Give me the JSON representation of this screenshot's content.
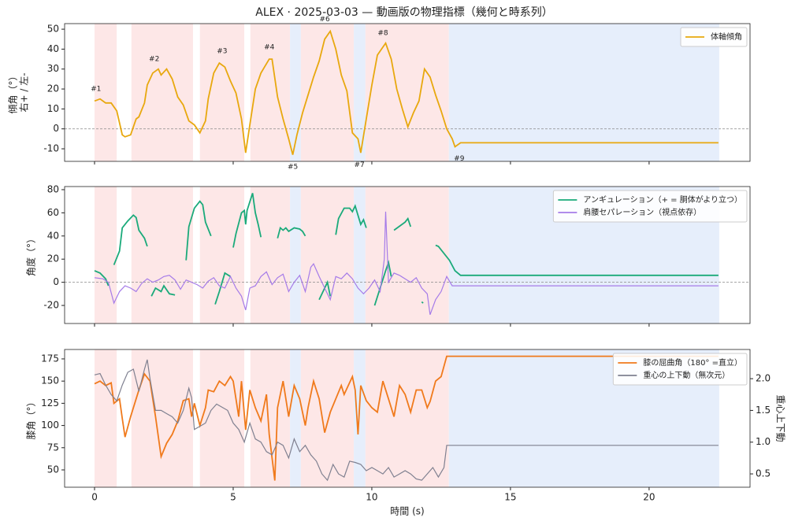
{
  "title": "ALEX · 2025-03-03 — 動画版の物理指標（幾何と時系列）",
  "spans": [
    {
      "start": 0,
      "end": 0.8,
      "color": "#fde7e7"
    },
    {
      "start": 1.33,
      "end": 3.55,
      "color": "#fde7e7"
    },
    {
      "start": 3.8,
      "end": 5.4,
      "color": "#fde7e7"
    },
    {
      "start": 5.62,
      "end": 7.05,
      "color": "#fde7e7"
    },
    {
      "start": 7.05,
      "end": 7.44,
      "color": "#e6eefb"
    },
    {
      "start": 7.44,
      "end": 9.35,
      "color": "#fde7e7"
    },
    {
      "start": 9.35,
      "end": 9.77,
      "color": "#e6eefb"
    },
    {
      "start": 9.77,
      "end": 12.78,
      "color": "#fde7e7"
    },
    {
      "start": 12.78,
      "end": 22.53,
      "color": "#e6eefb"
    }
  ],
  "chart_data": [
    {
      "type": "line",
      "ylabel": [
        "傾角（°）",
        "右+ / 左-"
      ],
      "xlim": [
        -1.08,
        23.64
      ],
      "ylim": [
        -16.3,
        52.8
      ],
      "yticks": [
        -10,
        0,
        10,
        20,
        30,
        40,
        50
      ],
      "hline": 0,
      "legend": "upper right",
      "series": [
        {
          "name": "体軸傾角",
          "color": "#e8a80e",
          "x": [
            0,
            0.2,
            0.4,
            0.6,
            0.8,
            1.0,
            1.1,
            1.3,
            1.5,
            1.6,
            1.8,
            1.9,
            2.1,
            2.3,
            2.4,
            2.6,
            2.8,
            3.0,
            3.2,
            3.4,
            3.6,
            3.8,
            4.0,
            4.1,
            4.3,
            4.5,
            4.7,
            4.9,
            5.1,
            5.3,
            5.45,
            5.6,
            5.8,
            6.0,
            6.3,
            6.4,
            6.6,
            6.8,
            7.0,
            7.15,
            7.3,
            7.5,
            7.7,
            7.9,
            8.1,
            8.3,
            8.5,
            8.7,
            8.9,
            9.1,
            9.3,
            9.5,
            9.6,
            9.8,
            10.0,
            10.2,
            10.5,
            10.7,
            10.9,
            11.1,
            11.3,
            11.5,
            11.7,
            11.9,
            12.1,
            12.3,
            12.5,
            12.7,
            12.9,
            13.0,
            13.2,
            22.5
          ],
          "values": [
            14,
            15,
            13,
            13,
            9,
            -3,
            -4,
            -3,
            5,
            6,
            13,
            22,
            28,
            30,
            27,
            30,
            25,
            16,
            12,
            4,
            2,
            -2,
            4,
            15,
            28,
            33,
            31,
            24,
            18,
            5,
            -12,
            2,
            20,
            28,
            35,
            35,
            16,
            5,
            -5,
            -13,
            -3,
            8,
            17,
            26,
            34,
            45,
            49,
            40,
            27,
            19,
            -2,
            -5,
            -12,
            5,
            22,
            37,
            43,
            35,
            20,
            10,
            1,
            8,
            14,
            30,
            26,
            17,
            9,
            0,
            -5,
            -9,
            -7,
            -7
          ]
        }
      ],
      "annotations": [
        {
          "text": "#1",
          "x": 0.05,
          "y": 20
        },
        {
          "text": "#2",
          "x": 2.15,
          "y": 35
        },
        {
          "text": "#3",
          "x": 4.6,
          "y": 39
        },
        {
          "text": "#4",
          "x": 6.3,
          "y": 41
        },
        {
          "text": "#5",
          "x": 7.15,
          "y": -19
        },
        {
          "text": "#6",
          "x": 8.3,
          "y": 55
        },
        {
          "text": "#7",
          "x": 9.55,
          "y": -18
        },
        {
          "text": "#8",
          "x": 10.4,
          "y": 48
        },
        {
          "text": "#9",
          "x": 13.15,
          "y": -15
        }
      ]
    },
    {
      "type": "line",
      "ylabel": [
        "角度（°）"
      ],
      "xlim": [
        -1.08,
        23.64
      ],
      "ylim": [
        -35.6,
        82.7
      ],
      "yticks": [
        -20,
        0,
        20,
        40,
        60,
        80
      ],
      "hline": 0,
      "legend": "upper right",
      "series": [
        {
          "name": "アンギュレーション（+ = 胴体がより立つ）",
          "color": "#1aaa7a",
          "x": [
            0,
            0.2,
            0.4,
            0.5,
            0.6,
            0.7,
            0.9,
            1.0,
            1.2,
            1.4,
            1.5,
            1.6,
            1.8,
            1.9,
            1.95,
            2.05,
            2.2,
            2.4,
            2.5,
            2.7,
            2.9,
            3.1,
            3.3,
            3.4,
            3.6,
            3.8,
            3.9,
            4.0,
            4.2,
            4.25,
            4.35,
            4.5,
            4.7,
            4.9,
            4.95,
            5.0,
            5.1,
            5.3,
            5.4,
            5.45,
            5.5,
            5.7,
            5.8,
            5.9,
            6.0,
            6.1,
            6.6,
            6.7,
            6.8,
            6.9,
            7.0,
            7.2,
            7.4,
            7.5,
            7.6,
            7.8,
            8.1,
            8.3,
            8.4,
            8.5,
            8.6,
            8.7,
            8.8,
            9.0,
            9.2,
            9.3,
            9.4,
            9.6,
            9.7,
            9.8,
            9.9,
            10.1,
            10.3,
            10.5,
            10.6,
            10.7,
            10.75,
            10.8,
            11.2,
            11.3,
            11.4,
            11.6,
            11.8,
            11.85,
            12.0,
            12.3,
            12.4,
            12.8,
            13.0,
            13.2,
            22.5
          ],
          "values": [
            10,
            8,
            3,
            -3,
            null,
            15,
            27,
            47,
            53,
            58,
            56,
            45,
            38,
            31,
            null,
            -12,
            -5,
            -8,
            -3,
            -10,
            -11,
            null,
            19,
            48,
            64,
            70,
            67,
            52,
            40,
            null,
            -19,
            -8,
            8,
            5,
            null,
            30,
            42,
            60,
            62,
            50,
            62,
            77,
            60,
            50,
            39,
            null,
            38,
            47,
            45,
            47,
            44,
            47,
            46,
            44,
            40,
            null,
            -15,
            -5,
            0,
            -12,
            null,
            41,
            55,
            64,
            64,
            61,
            66,
            50,
            54,
            47,
            null,
            -20,
            -5,
            10,
            17,
            5,
            null,
            45,
            52,
            55,
            48,
            null,
            -17,
            -18,
            null,
            32,
            31,
            19,
            10,
            6,
            6
          ]
        },
        {
          "name": "肩腰セパレーション（視点依存）",
          "color": "#a57be8",
          "x": [
            0,
            0.3,
            0.5,
            0.7,
            0.9,
            1.1,
            1.3,
            1.5,
            1.7,
            1.9,
            2.1,
            2.3,
            2.5,
            2.7,
            2.9,
            3.1,
            3.3,
            3.5,
            3.7,
            3.9,
            4.1,
            4.3,
            4.5,
            4.7,
            4.9,
            5.1,
            5.3,
            5.45,
            5.6,
            5.8,
            6.0,
            6.2,
            6.4,
            6.6,
            6.8,
            7.0,
            7.2,
            7.4,
            7.6,
            7.8,
            7.9,
            8.1,
            8.3,
            8.5,
            8.7,
            8.9,
            9.1,
            9.3,
            9.5,
            9.7,
            9.9,
            10.1,
            10.3,
            10.45,
            10.5,
            10.6,
            10.8,
            11.0,
            11.2,
            11.4,
            11.6,
            11.8,
            12.0,
            12.1,
            12.3,
            12.5,
            12.7,
            12.9,
            13.1,
            22.5
          ],
          "values": [
            4,
            3,
            0,
            -18,
            -8,
            -3,
            -5,
            -8,
            -1,
            3,
            0,
            2,
            5,
            6,
            2,
            -6,
            2,
            0,
            -2,
            -5,
            1,
            4,
            -3,
            -5,
            5,
            -5,
            -12,
            -24,
            -5,
            -3,
            5,
            9,
            -2,
            4,
            7,
            -8,
            0,
            6,
            -8,
            13,
            16,
            5,
            -5,
            -15,
            5,
            3,
            8,
            3,
            -5,
            -10,
            -5,
            2,
            -8,
            20,
            61,
            0,
            8,
            6,
            3,
            0,
            4,
            -5,
            -10,
            -28,
            -15,
            -8,
            5,
            -3,
            -3,
            -3
          ]
        }
      ]
    },
    {
      "type": "line",
      "ylabel": [
        "膝角（°）"
      ],
      "y2label": "重心上下動",
      "xlabel": "時間 (s)",
      "xlim": [
        -1.08,
        23.64
      ],
      "xticks": [
        0,
        5,
        10,
        15,
        20
      ],
      "ylim": [
        30.5,
        185.6
      ],
      "yticks": [
        50,
        75,
        100,
        125,
        150,
        175
      ],
      "y2lim": [
        0.29,
        2.46
      ],
      "y2ticks": [
        0.5,
        {
          "value": 1,
          "label": "1.0"
        },
        1.5,
        {
          "value": 2,
          "label": "2.0"
        }
      ],
      "legend": "upper right",
      "series": [
        {
          "name": "膝の屈曲角（180° =直立）",
          "color": "#f07a1c",
          "x": [
            0,
            0.2,
            0.4,
            0.6,
            0.7,
            0.9,
            1.0,
            1.1,
            1.3,
            1.5,
            1.6,
            1.8,
            2.0,
            2.1,
            2.2,
            2.4,
            2.6,
            2.8,
            3.0,
            3.2,
            3.4,
            3.5,
            3.6,
            3.8,
            4.0,
            4.1,
            4.3,
            4.5,
            4.7,
            4.9,
            5.0,
            5.1,
            5.2,
            5.3,
            5.45,
            5.6,
            5.8,
            6.0,
            6.2,
            6.3,
            6.5,
            6.6,
            6.8,
            7.0,
            7.2,
            7.4,
            7.6,
            7.7,
            7.9,
            8.1,
            8.3,
            8.5,
            8.7,
            8.9,
            9.0,
            9.3,
            9.4,
            9.5,
            9.6,
            9.8,
            10.0,
            10.2,
            10.4,
            10.6,
            10.8,
            11.0,
            11.2,
            11.4,
            11.6,
            11.8,
            12.0,
            12.1,
            12.3,
            12.5,
            12.7,
            22.5
          ],
          "values": [
            147,
            150,
            145,
            148,
            125,
            130,
            108,
            87,
            110,
            130,
            140,
            158,
            150,
            130,
            110,
            65,
            80,
            90,
            105,
            128,
            130,
            110,
            125,
            100,
            120,
            140,
            138,
            150,
            145,
            155,
            150,
            130,
            110,
            150,
            95,
            140,
            120,
            105,
            135,
            90,
            38,
            120,
            150,
            110,
            145,
            130,
            100,
            120,
            150,
            130,
            92,
            115,
            130,
            145,
            135,
            155,
            140,
            90,
            145,
            128,
            120,
            115,
            150,
            130,
            110,
            145,
            135,
            115,
            140,
            140,
            120,
            127,
            150,
            155,
            178,
            178
          ]
        },
        {
          "name": "重心の上下動（無次元）",
          "color": "#7f8090",
          "axis": "y2",
          "x": [
            0,
            0.2,
            0.4,
            0.6,
            0.8,
            1.0,
            1.2,
            1.4,
            1.6,
            1.8,
            1.9,
            2.0,
            2.2,
            2.4,
            2.6,
            2.8,
            3.0,
            3.2,
            3.4,
            3.5,
            3.6,
            3.8,
            4.0,
            4.2,
            4.4,
            4.6,
            4.8,
            5.0,
            5.2,
            5.4,
            5.6,
            5.8,
            6.0,
            6.2,
            6.4,
            6.6,
            6.8,
            7.0,
            7.2,
            7.4,
            7.6,
            7.8,
            8.0,
            8.2,
            8.4,
            8.6,
            8.8,
            9.0,
            9.2,
            9.4,
            9.6,
            9.8,
            10.0,
            10.2,
            10.4,
            10.6,
            10.8,
            11.0,
            11.2,
            11.4,
            11.6,
            11.8,
            12.0,
            12.2,
            12.4,
            12.6,
            12.7,
            22.5
          ],
          "values": [
            2.06,
            2.08,
            1.9,
            1.75,
            1.65,
            1.9,
            2.1,
            2.15,
            1.8,
            2.15,
            2.3,
            2.0,
            1.5,
            1.5,
            1.45,
            1.4,
            1.3,
            1.5,
            1.85,
            1.7,
            1.2,
            1.25,
            1.3,
            1.5,
            1.6,
            1.55,
            1.5,
            1.3,
            1.2,
            1.0,
            1.3,
            1.05,
            1.0,
            0.85,
            0.8,
            1.0,
            0.95,
            0.75,
            1.05,
            0.85,
            0.95,
            0.8,
            0.7,
            0.5,
            0.4,
            0.65,
            0.5,
            0.45,
            0.7,
            0.68,
            0.65,
            0.55,
            0.6,
            0.55,
            0.5,
            0.6,
            0.45,
            0.5,
            0.55,
            0.5,
            0.42,
            0.4,
            0.5,
            0.6,
            0.45,
            0.6,
            0.95,
            0.95
          ]
        }
      ]
    }
  ]
}
